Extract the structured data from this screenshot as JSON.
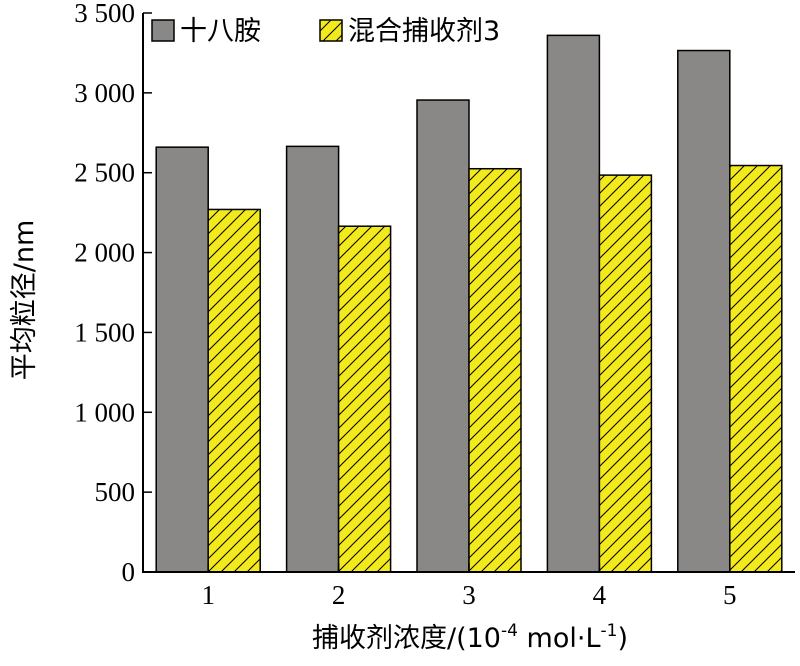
{
  "chart_data": {
    "type": "bar",
    "categories": [
      "1",
      "2",
      "3",
      "4",
      "5"
    ],
    "series": [
      {
        "name": "十八胺",
        "values": [
          2660,
          2665,
          2955,
          3360,
          3265
        ],
        "color": "#8a8886",
        "pattern": "solid"
      },
      {
        "name": "混合捕收剂3",
        "values": [
          2270,
          2165,
          2525,
          2485,
          2545
        ],
        "color": "#f3ea1e",
        "pattern": "diagonal-hatch"
      }
    ],
    "yticks": [
      "0",
      "500",
      "1 000",
      "1 500",
      "2 000",
      "2 500",
      "3 000",
      "3 500"
    ],
    "ylim": [
      0,
      3500
    ],
    "ylabel": "平均粒径/nm",
    "xlabel": {
      "text_before": "捕收剂浓度/(10",
      "sup1": "-4",
      "text_middle": " mol·L",
      "sup2": "-1",
      "text_after": ")"
    },
    "legend_position": "top-left",
    "grid": false
  }
}
